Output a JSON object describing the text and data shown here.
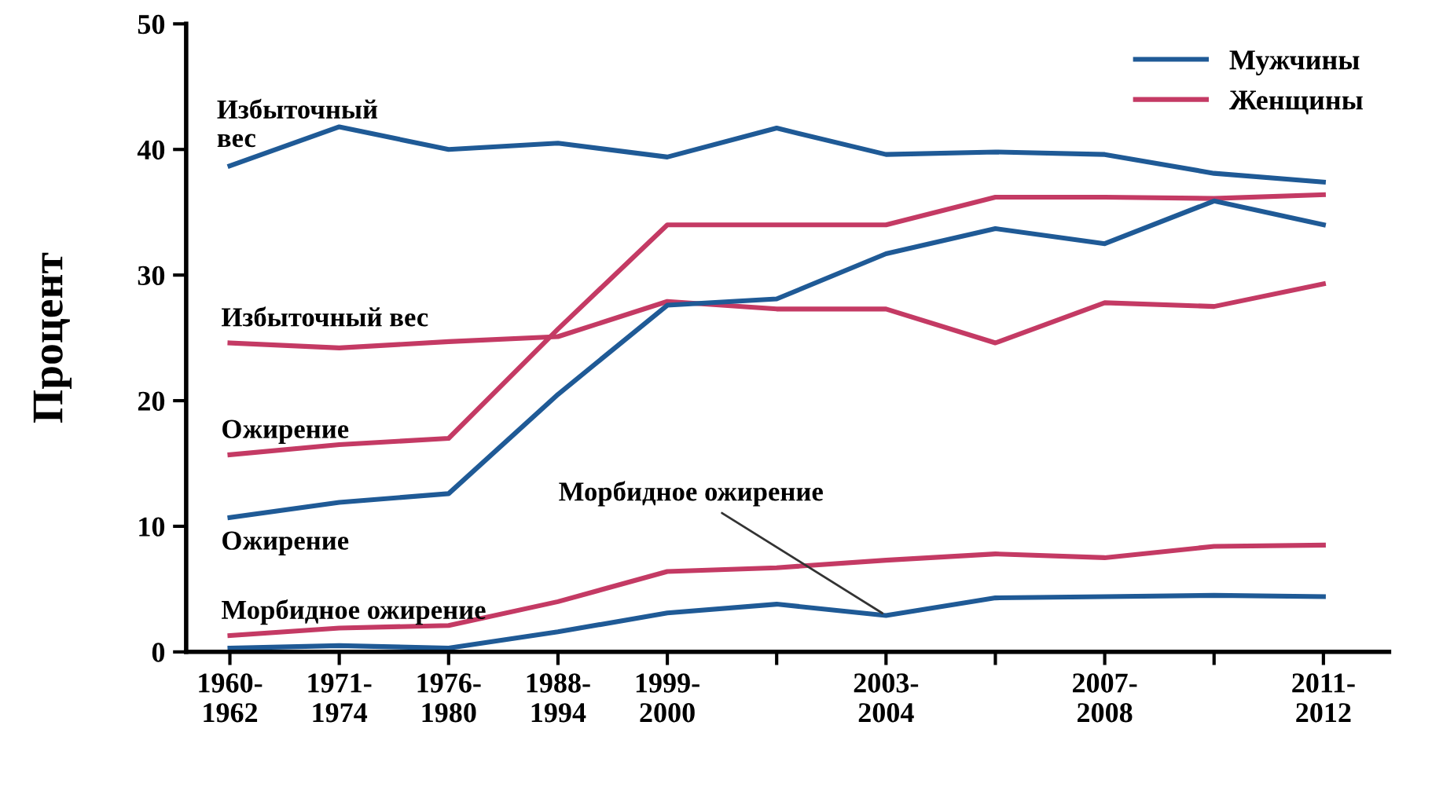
{
  "chart_data": {
    "type": "line",
    "ylabel": "Процент",
    "categories": [
      "1960-\n1962",
      "1971-\n1974",
      "1976-\n1980",
      "1988-\n1994",
      "1999-\n2000",
      null,
      "2003-\n2004",
      null,
      "2007-\n2008",
      null,
      "2011-\n2012"
    ],
    "series": [
      {
        "name": "Мужчины",
        "color": "#1f5a96",
        "values": [
          38.7,
          41.8,
          40.0,
          40.5,
          39.4,
          41.7,
          39.6,
          39.8,
          39.6,
          38.1,
          37.4
        ]
      },
      {
        "name": "Женщины",
        "color": "#c43a64",
        "values": [
          24.6,
          24.2,
          24.7,
          25.1,
          27.9,
          27.3,
          27.3,
          24.6,
          27.8,
          27.5,
          29.3
        ]
      },
      {
        "color": "#c43a64",
        "values": [
          15.7,
          16.5,
          17.0,
          25.7,
          34.0,
          34.0,
          34.0,
          36.2,
          36.2,
          36.1,
          36.4
        ]
      },
      {
        "color": "#1f5a96",
        "values": [
          10.7,
          11.9,
          12.6,
          20.5,
          27.6,
          28.1,
          31.7,
          33.7,
          32.5,
          35.9,
          34.0
        ]
      },
      {
        "color": "#c43a64",
        "values": [
          1.3,
          1.9,
          2.1,
          4.0,
          6.4,
          6.7,
          7.3,
          7.8,
          7.5,
          8.4,
          8.5
        ]
      },
      {
        "color": "#1f5a96",
        "values": [
          0.3,
          0.5,
          0.3,
          1.6,
          3.1,
          3.8,
          2.9,
          4.3,
          4.4,
          4.5,
          4.4
        ]
      }
    ],
    "ylim": [
      0,
      50
    ],
    "yticks": [
      0,
      10,
      20,
      30,
      40,
      50
    ],
    "annotations": [
      {
        "text": "Избыточный\nвес",
        "x": "1960-\n1962",
        "y": 38.7
      },
      {
        "text": "Избыточный вес",
        "x": "1960-\n1962",
        "y": 24.6
      },
      {
        "text": "Ожирение",
        "x": "1960-\n1962",
        "y": 15.7
      },
      {
        "text": "Ожирение",
        "x": "1960-\n1962",
        "y": 10.7
      },
      {
        "text": "Морбидное ожирение",
        "x": "1960-\n1962",
        "y": 1.3
      },
      {
        "text": "Морбидное ожирение",
        "x": "2003-\n2004",
        "y": 2.9
      }
    ],
    "legend": "top right",
    "grid": false,
    "marker": "none",
    "line_style": "solid"
  }
}
